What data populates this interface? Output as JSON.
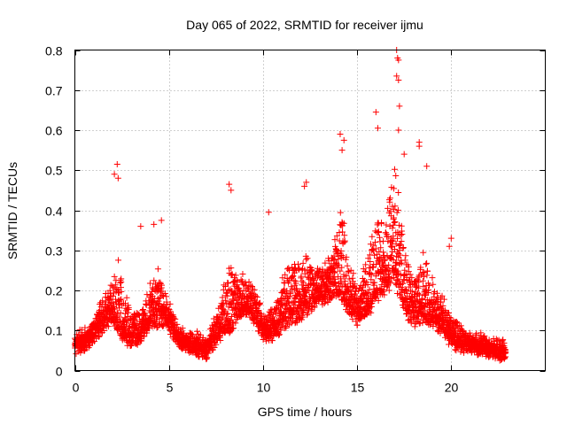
{
  "chart_data": {
    "type": "scatter",
    "title": "Day 065 of 2022, SRMTID for receiver ijmu",
    "xlabel": "GPS time / hours",
    "ylabel": "SRMTID / TECUs",
    "xlim": [
      0,
      25
    ],
    "ylim": [
      0,
      0.8
    ],
    "xticks": [
      0,
      5,
      10,
      15,
      20
    ],
    "xtick_labels": [
      "0",
      "5",
      "10",
      "15",
      "20"
    ],
    "yticks": [
      0,
      0.1,
      0.2,
      0.3,
      0.4,
      0.5,
      0.6,
      0.7,
      0.8
    ],
    "ytick_labels": [
      "0",
      "0.1",
      "0.2",
      "0.3",
      "0.4",
      "0.5",
      "0.6",
      "0.7",
      "0.8"
    ],
    "grid": true,
    "marker": "+",
    "marker_color": "#ff0000",
    "series": [
      {
        "name": "SRMTID",
        "x_start": 0.0,
        "x_end": 22.9,
        "envelope": {
          "x": [
            0.0,
            0.5,
            1.0,
            1.5,
            2.0,
            2.3,
            2.6,
            3.0,
            3.5,
            4.0,
            4.5,
            5.0,
            5.5,
            6.0,
            6.5,
            7.0,
            7.5,
            8.0,
            8.3,
            8.7,
            9.2,
            9.7,
            10.2,
            10.7,
            11.2,
            11.8,
            12.3,
            12.8,
            13.3,
            13.8,
            14.2,
            14.6,
            15.0,
            15.5,
            16.0,
            16.5,
            17.0,
            17.3,
            17.6,
            18.0,
            18.5,
            19.0,
            19.5,
            20.0,
            20.5,
            21.0,
            21.5,
            22.0,
            22.5,
            22.9
          ],
          "base": [
            0.075,
            0.08,
            0.1,
            0.13,
            0.15,
            0.12,
            0.1,
            0.09,
            0.1,
            0.13,
            0.14,
            0.13,
            0.09,
            0.08,
            0.07,
            0.06,
            0.09,
            0.12,
            0.13,
            0.16,
            0.17,
            0.13,
            0.1,
            0.11,
            0.14,
            0.15,
            0.17,
            0.19,
            0.2,
            0.21,
            0.2,
            0.17,
            0.14,
            0.16,
            0.2,
            0.22,
            0.24,
            0.2,
            0.16,
            0.14,
            0.15,
            0.14,
            0.12,
            0.09,
            0.08,
            0.075,
            0.07,
            0.065,
            0.06,
            0.055
          ],
          "spread": [
            0.025,
            0.03,
            0.04,
            0.06,
            0.09,
            0.16,
            0.12,
            0.07,
            0.06,
            0.1,
            0.12,
            0.05,
            0.03,
            0.03,
            0.03,
            0.03,
            0.06,
            0.12,
            0.15,
            0.08,
            0.08,
            0.06,
            0.05,
            0.08,
            0.12,
            0.14,
            0.12,
            0.08,
            0.08,
            0.12,
            0.22,
            0.14,
            0.08,
            0.12,
            0.2,
            0.16,
            0.3,
            0.22,
            0.14,
            0.08,
            0.16,
            0.1,
            0.08,
            0.06,
            0.04,
            0.03,
            0.03,
            0.025,
            0.025,
            0.02
          ]
        },
        "peaks": [
          [
            2.25,
            0.515
          ],
          [
            2.1,
            0.49
          ],
          [
            2.3,
            0.48
          ],
          [
            4.6,
            0.375
          ],
          [
            4.2,
            0.365
          ],
          [
            3.5,
            0.36
          ],
          [
            8.2,
            0.465
          ],
          [
            8.3,
            0.45
          ],
          [
            10.3,
            0.395
          ],
          [
            12.3,
            0.47
          ],
          [
            12.2,
            0.46
          ],
          [
            14.1,
            0.59
          ],
          [
            14.3,
            0.575
          ],
          [
            14.2,
            0.55
          ],
          [
            16.0,
            0.645
          ],
          [
            16.1,
            0.605
          ],
          [
            17.1,
            0.8
          ],
          [
            17.15,
            0.78
          ],
          [
            17.2,
            0.775
          ],
          [
            17.1,
            0.735
          ],
          [
            17.2,
            0.725
          ],
          [
            17.25,
            0.66
          ],
          [
            17.2,
            0.6
          ],
          [
            17.5,
            0.54
          ],
          [
            18.3,
            0.57
          ],
          [
            18.3,
            0.56
          ],
          [
            18.7,
            0.51
          ],
          [
            20.0,
            0.33
          ],
          [
            19.9,
            0.31
          ]
        ],
        "points_per_hour": 150,
        "seed": 65
      }
    ]
  }
}
